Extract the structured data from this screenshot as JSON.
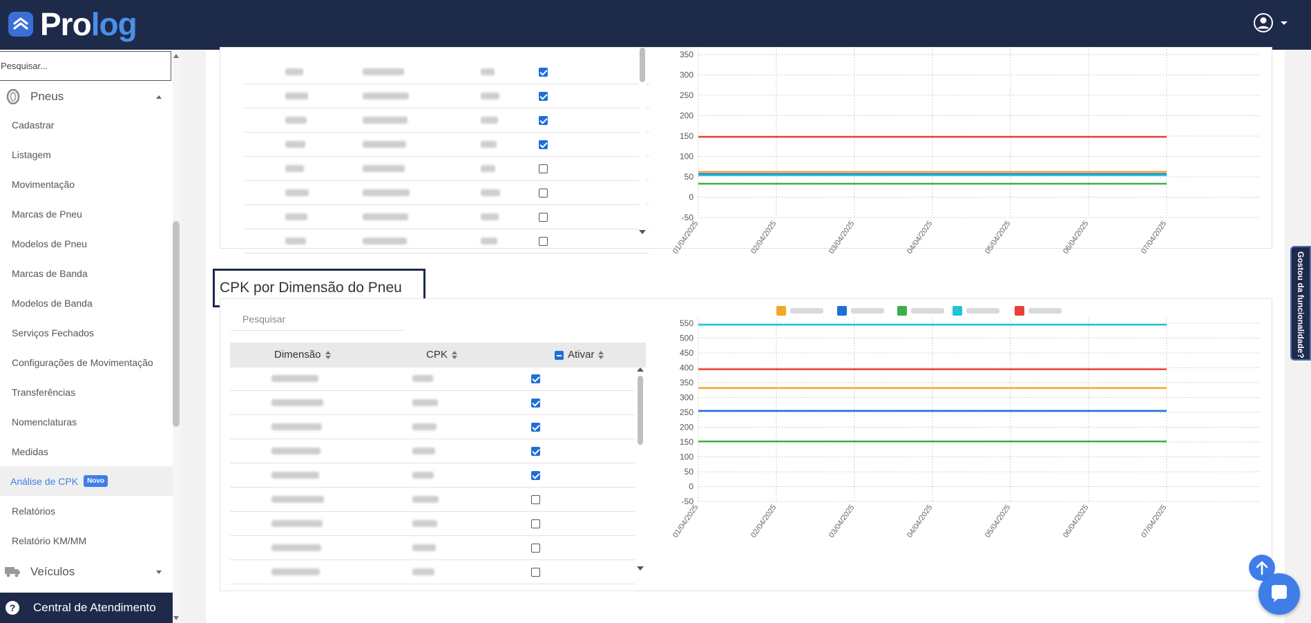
{
  "header": {
    "logo_pro": "Pro",
    "logo_log": "log",
    "user_icon": "user-circle-icon"
  },
  "sidebar": {
    "search_placeholder": "Pesquisar...",
    "section_pneus": "Pneus",
    "items": [
      {
        "label": "Cadastrar"
      },
      {
        "label": "Listagem"
      },
      {
        "label": "Movimentação"
      },
      {
        "label": "Marcas de Pneu"
      },
      {
        "label": "Modelos de Pneu"
      },
      {
        "label": "Marcas de Banda"
      },
      {
        "label": "Modelos de Banda"
      },
      {
        "label": "Serviços Fechados"
      },
      {
        "label": "Configurações de Movimentação"
      },
      {
        "label": "Transferências"
      },
      {
        "label": "Nomenclaturas"
      },
      {
        "label": "Medidas"
      },
      {
        "label": "Análise de CPK",
        "badge": "Novo",
        "active": true
      },
      {
        "label": "Relatórios"
      },
      {
        "label": "Relatório KM/MM"
      }
    ],
    "section_veiculos": "Veículos",
    "central": "Central de Atendimento"
  },
  "section2": {
    "title": "CPK por Dimensão do Pneu",
    "search_placeholder": "Pesquisar",
    "columns": [
      "Dimensão",
      "CPK",
      "Ativar"
    ]
  },
  "table1_checks": [
    true,
    true,
    true,
    true,
    false,
    false,
    false,
    false
  ],
  "table2_checks": [
    true,
    true,
    true,
    true,
    true,
    false,
    false,
    false,
    false
  ],
  "feedback_tab": "Gostou da funcionalidade?",
  "colors": {
    "navy": "#1e2a4a",
    "accent": "#3f7ee8",
    "orange": "#f5a623",
    "blue": "#1e6fd8",
    "green": "#3aae48",
    "cyan": "#1ec3d8",
    "red": "#e8403a"
  },
  "chart_data": [
    {
      "type": "line",
      "x": [
        "01/04/2025",
        "02/04/2025",
        "03/04/2025",
        "04/04/2025",
        "05/04/2025",
        "06/04/2025",
        "07/04/2025"
      ],
      "yticks": [
        350,
        300,
        250,
        200,
        150,
        100,
        50,
        0,
        -50
      ],
      "ylim": [
        -50,
        350
      ],
      "grid": true,
      "series": [
        {
          "color": "#e8403a",
          "values": [
            148,
            148,
            148,
            148,
            148,
            148,
            148
          ]
        },
        {
          "color": "#f5a623",
          "values": [
            62,
            62,
            62,
            62,
            62,
            62,
            62
          ]
        },
        {
          "color": "#1e6fd8",
          "values": [
            57,
            57,
            57,
            57,
            57,
            57,
            57
          ]
        },
        {
          "color": "#1ec3d8",
          "values": [
            54,
            54,
            54,
            54,
            54,
            54,
            54
          ]
        },
        {
          "color": "#3aae48",
          "values": [
            33,
            33,
            33,
            33,
            33,
            33,
            33
          ]
        }
      ]
    },
    {
      "type": "line",
      "x": [
        "01/04/2025",
        "02/04/2025",
        "03/04/2025",
        "04/04/2025",
        "05/04/2025",
        "06/04/2025",
        "07/04/2025"
      ],
      "yticks": [
        550,
        500,
        450,
        400,
        350,
        300,
        250,
        200,
        150,
        100,
        50,
        0,
        -50
      ],
      "ylim": [
        -50,
        550
      ],
      "grid": true,
      "legend": "top",
      "series": [
        {
          "color": "#1ec3d8",
          "values": [
            545,
            545,
            545,
            545,
            545,
            545,
            545
          ]
        },
        {
          "color": "#e8403a",
          "values": [
            395,
            395,
            395,
            395,
            395,
            395,
            395
          ]
        },
        {
          "color": "#f5a623",
          "values": [
            332,
            332,
            332,
            332,
            332,
            332,
            332
          ]
        },
        {
          "color": "#1e6fd8",
          "values": [
            255,
            255,
            255,
            255,
            255,
            255,
            255
          ]
        },
        {
          "color": "#3aae48",
          "values": [
            152,
            152,
            152,
            152,
            152,
            152,
            152
          ]
        }
      ]
    }
  ]
}
